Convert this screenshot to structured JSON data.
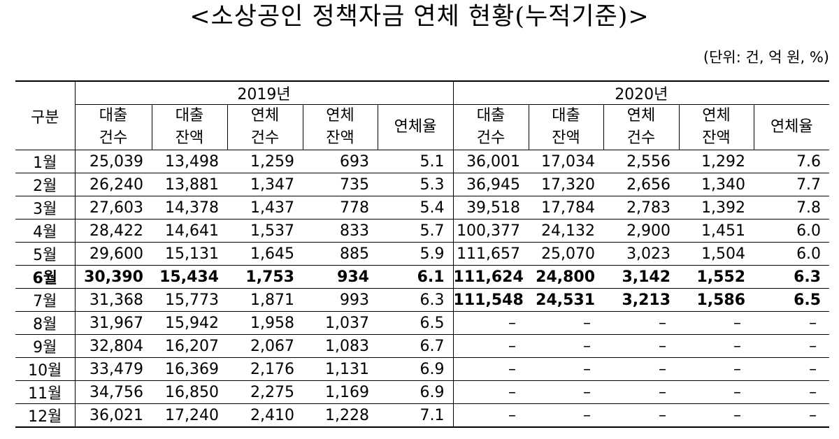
{
  "title": "<소상공인 정책자금 연체 현황(누적기준)>",
  "unit": "(단위: 건, 억 원, %)",
  "table": {
    "row_header": "구분",
    "years": [
      "2019년",
      "2020년"
    ],
    "columns": [
      [
        "대출",
        "건수"
      ],
      [
        "대출",
        "잔액"
      ],
      [
        "연체",
        "건수"
      ],
      [
        "연체",
        "잔액"
      ],
      [
        "연체율",
        ""
      ]
    ],
    "rows": [
      {
        "month": "1월",
        "y2019": [
          "25,039",
          "13,498",
          "1,259",
          "693",
          "5.1"
        ],
        "y2020": [
          "36,001",
          "17,034",
          "2,556",
          "1,292",
          "7.6"
        ]
      },
      {
        "month": "2월",
        "y2019": [
          "26,240",
          "13,881",
          "1,347",
          "735",
          "5.3"
        ],
        "y2020": [
          "36,945",
          "17,320",
          "2,656",
          "1,340",
          "7.7"
        ]
      },
      {
        "month": "3월",
        "y2019": [
          "27,603",
          "14,378",
          "1,437",
          "778",
          "5.4"
        ],
        "y2020": [
          "39,518",
          "17,784",
          "2,783",
          "1,392",
          "7.8"
        ]
      },
      {
        "month": "4월",
        "y2019": [
          "28,422",
          "14,641",
          "1,537",
          "833",
          "5.7"
        ],
        "y2020": [
          "100,377",
          "24,132",
          "2,900",
          "1,451",
          "6.0"
        ]
      },
      {
        "month": "5월",
        "y2019": [
          "29,600",
          "15,131",
          "1,645",
          "885",
          "5.9"
        ],
        "y2020": [
          "111,657",
          "25,070",
          "3,023",
          "1,504",
          "6.0"
        ]
      },
      {
        "month": "6월",
        "y2019": [
          "30,390",
          "15,434",
          "1,753",
          "934",
          "6.1"
        ],
        "y2020": [
          "111,624",
          "24,800",
          "3,142",
          "1,552",
          "6.3"
        ]
      },
      {
        "month": "7월",
        "y2019": [
          "31,368",
          "15,773",
          "1,871",
          "993",
          "6.3"
        ],
        "y2020": [
          "111,548",
          "24,531",
          "3,213",
          "1,586",
          "6.5"
        ]
      },
      {
        "month": "8월",
        "y2019": [
          "31,967",
          "15,942",
          "1,958",
          "1,037",
          "6.5"
        ],
        "y2020": [
          "–",
          "–",
          "–",
          "–",
          "–"
        ]
      },
      {
        "month": "9월",
        "y2019": [
          "32,804",
          "16,207",
          "2,067",
          "1,083",
          "6.7"
        ],
        "y2020": [
          "–",
          "–",
          "–",
          "–",
          "–"
        ]
      },
      {
        "month": "10월",
        "y2019": [
          "33,479",
          "16,369",
          "2,176",
          "1,131",
          "6.9"
        ],
        "y2020": [
          "–",
          "–",
          "–",
          "–",
          "–"
        ]
      },
      {
        "month": "11월",
        "y2019": [
          "34,756",
          "16,850",
          "2,275",
          "1,169",
          "6.9"
        ],
        "y2020": [
          "–",
          "–",
          "–",
          "–",
          "–"
        ]
      },
      {
        "month": "12월",
        "y2019": [
          "36,021",
          "17,240",
          "2,410",
          "1,228",
          "7.1"
        ],
        "y2020": [
          "–",
          "–",
          "–",
          "–",
          "–"
        ]
      }
    ]
  }
}
